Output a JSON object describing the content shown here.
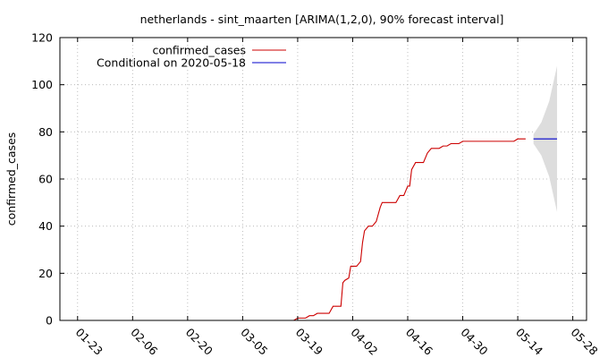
{
  "chart_data": {
    "type": "line",
    "title": "netherlands - sint_maarten [ARIMA(1,2,0), 90% forecast interval]",
    "ylabel": "confirmed_cases",
    "xlabel": "",
    "ylim": [
      0,
      120
    ],
    "yticks": [
      0,
      20,
      40,
      60,
      80,
      100,
      120
    ],
    "xticks": [
      {
        "day": 0,
        "label": "01-23"
      },
      {
        "day": 14,
        "label": "02-06"
      },
      {
        "day": 28,
        "label": "02-20"
      },
      {
        "day": 42,
        "label": "03-05"
      },
      {
        "day": 56,
        "label": "03-19"
      },
      {
        "day": 70,
        "label": "04-02"
      },
      {
        "day": 84,
        "label": "04-16"
      },
      {
        "day": 98,
        "label": "04-30"
      },
      {
        "day": 112,
        "label": "05-14"
      },
      {
        "day": 126,
        "label": "05-28"
      }
    ],
    "xlim_days": [
      -4.5,
      129.5
    ],
    "grid": true,
    "legend_position": "top-left",
    "series": [
      {
        "name": "confirmed_cases",
        "color": "#cc0000",
        "points": [
          [
            55,
            0
          ],
          [
            56,
            1
          ],
          [
            57,
            1
          ],
          [
            58,
            1
          ],
          [
            59,
            2
          ],
          [
            60,
            2
          ],
          [
            61,
            3
          ],
          [
            62,
            3
          ],
          [
            63,
            3
          ],
          [
            64,
            3
          ],
          [
            65,
            6
          ],
          [
            66,
            6
          ],
          [
            67,
            6
          ],
          [
            67.5,
            16
          ],
          [
            68,
            17
          ],
          [
            69,
            18
          ],
          [
            69.5,
            23
          ],
          [
            70,
            23
          ],
          [
            71,
            23
          ],
          [
            72,
            25
          ],
          [
            72.5,
            33
          ],
          [
            73,
            38
          ],
          [
            74,
            40
          ],
          [
            75,
            40
          ],
          [
            76,
            42
          ],
          [
            77,
            48
          ],
          [
            77.5,
            50
          ],
          [
            78,
            50
          ],
          [
            79,
            50
          ],
          [
            80,
            50
          ],
          [
            81,
            50
          ],
          [
            82,
            53
          ],
          [
            83,
            53
          ],
          [
            84,
            57
          ],
          [
            84.5,
            57
          ],
          [
            85,
            64
          ],
          [
            86,
            67
          ],
          [
            87,
            67
          ],
          [
            88,
            67
          ],
          [
            89,
            71
          ],
          [
            90,
            73
          ],
          [
            91,
            73
          ],
          [
            92,
            73
          ],
          [
            93,
            74
          ],
          [
            94,
            74
          ],
          [
            95,
            75
          ],
          [
            96,
            75
          ],
          [
            97,
            75
          ],
          [
            98,
            76
          ],
          [
            99,
            76
          ],
          [
            100,
            76
          ],
          [
            102,
            76
          ],
          [
            104,
            76
          ],
          [
            106,
            76
          ],
          [
            108,
            76
          ],
          [
            110,
            76
          ],
          [
            111,
            76
          ],
          [
            112,
            77
          ],
          [
            114,
            77
          ]
        ]
      },
      {
        "name": "Conditional on 2020-05-18",
        "color": "#0000cc",
        "points": [
          [
            116,
            77
          ],
          [
            122,
            77
          ]
        ]
      }
    ],
    "forecast_interval": {
      "color": "#dddddd",
      "upper": [
        [
          116,
          79
        ],
        [
          118,
          84
        ],
        [
          120,
          93
        ],
        [
          122,
          108
        ]
      ],
      "lower": [
        [
          116,
          75
        ],
        [
          118,
          70
        ],
        [
          120,
          61
        ],
        [
          122,
          46
        ]
      ]
    }
  }
}
